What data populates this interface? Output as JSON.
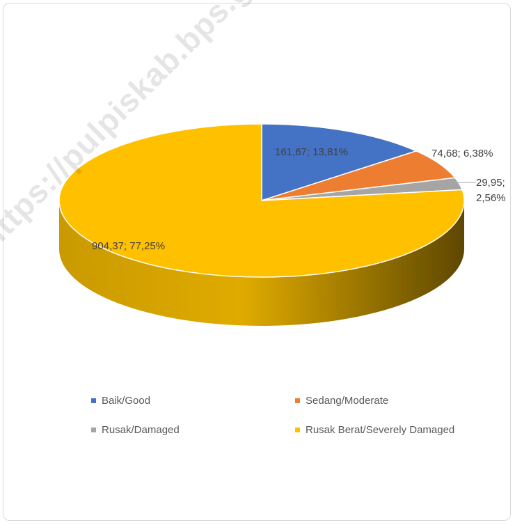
{
  "watermark": "https://pulpiskab.bps.go.id",
  "chart_data": {
    "type": "pie",
    "title": "",
    "legend_position": "bottom",
    "slices": [
      {
        "name": "Baik/Good",
        "value": 161.67,
        "percent": 13.81,
        "label": "161,67; 13,81%",
        "color": "#4472c4",
        "side_color": "#2f5597"
      },
      {
        "name": "Sedang/Moderate",
        "value": 74.68,
        "percent": 6.38,
        "label": "74,68; 6,38%",
        "color": "#ed7d31",
        "side_color": "#b05a1f"
      },
      {
        "name": "Rusak/Damaged",
        "value": 29.95,
        "percent": 2.56,
        "label_line1": "29,95;",
        "label_line2": "2,56%",
        "color": "#a5a5a5",
        "side_color": "#7a7a7a"
      },
      {
        "name": "Rusak Berat/Severely Damaged",
        "value": 904.37,
        "percent": 77.25,
        "label": "904,37; 77,25%",
        "color": "#ffc000",
        "side_color": "#b78a00"
      }
    ]
  }
}
